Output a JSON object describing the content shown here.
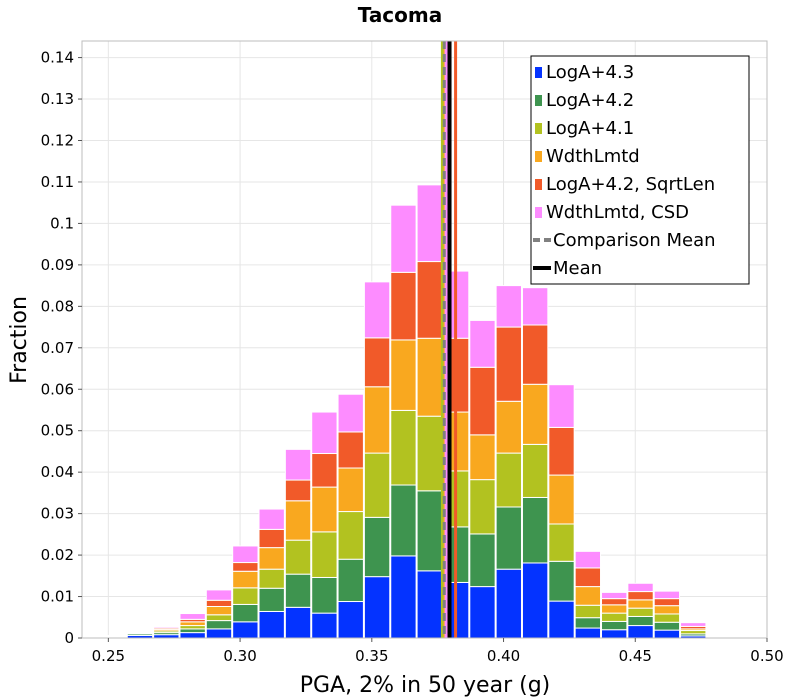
{
  "chart_data": {
    "type": "bar",
    "stacked": true,
    "title": "Tacoma",
    "xlabel": "PGA, 2% in 50 year (g)",
    "ylabel": "Fraction",
    "xlim": [
      0.24,
      0.5
    ],
    "ylim": [
      0,
      0.144
    ],
    "x_ticks": [
      0.25,
      0.3,
      0.35,
      0.4,
      0.45,
      0.5
    ],
    "x_tick_labels": [
      "0.25",
      "0.30",
      "0.35",
      "0.40",
      "0.45",
      "0.50"
    ],
    "y_ticks": [
      0,
      0.01,
      0.02,
      0.03,
      0.04,
      0.05,
      0.06,
      0.07,
      0.08,
      0.09,
      0.1,
      0.11,
      0.12,
      0.13,
      0.14
    ],
    "y_tick_labels": [
      "0",
      "0.01",
      "0.02",
      "0.03",
      "0.04",
      "0.05",
      "0.06",
      "0.07",
      "0.08",
      "0.09",
      "0.1",
      "0.11",
      "0.12",
      "0.13",
      "0.14"
    ],
    "grid": true,
    "bin_width": 0.01,
    "bin_centers": [
      0.252,
      0.262,
      0.272,
      0.282,
      0.292,
      0.302,
      0.312,
      0.322,
      0.332,
      0.342,
      0.352,
      0.362,
      0.372,
      0.382,
      0.392,
      0.402,
      0.412,
      0.422,
      0.432,
      0.442,
      0.452,
      0.462,
      0.472,
      0.482
    ],
    "series": [
      {
        "name": "LogA+4.3",
        "color": "#0433ff",
        "values": [
          0.0001,
          0.0006,
          0.0008,
          0.0013,
          0.0022,
          0.0039,
          0.0064,
          0.0074,
          0.006,
          0.0088,
          0.0148,
          0.0198,
          0.0162,
          0.0134,
          0.0124,
          0.0166,
          0.0181,
          0.0089,
          0.0024,
          0.002,
          0.003,
          0.0019,
          0.0005,
          0.0001
        ]
      },
      {
        "name": "LogA+4.2",
        "color": "#3e944f",
        "values": [
          0.0001,
          0.0004,
          0.0005,
          0.0009,
          0.002,
          0.0042,
          0.0056,
          0.008,
          0.0086,
          0.0102,
          0.0143,
          0.0171,
          0.0193,
          0.0134,
          0.0127,
          0.015,
          0.0158,
          0.0096,
          0.0025,
          0.002,
          0.0022,
          0.0019,
          0.0005,
          0.0001
        ]
      },
      {
        "name": "LogA+4.1",
        "color": "#b2c220",
        "values": [
          0.0001,
          0.0002,
          0.0004,
          0.0008,
          0.0014,
          0.004,
          0.0046,
          0.0082,
          0.011,
          0.0115,
          0.0155,
          0.018,
          0.018,
          0.0135,
          0.0131,
          0.013,
          0.0128,
          0.009,
          0.003,
          0.002,
          0.002,
          0.002,
          0.0008,
          0.0001
        ]
      },
      {
        "name": "WdthLmtd",
        "color": "#f9a81f",
        "values": [
          0.0001,
          0.0002,
          0.0004,
          0.0009,
          0.002,
          0.004,
          0.0052,
          0.0095,
          0.0108,
          0.0105,
          0.016,
          0.017,
          0.0188,
          0.0142,
          0.0108,
          0.0125,
          0.0145,
          0.0118,
          0.0045,
          0.002,
          0.002,
          0.002,
          0.0004,
          0.0001
        ]
      },
      {
        "name": "LogA+4.2, SqrtLen",
        "color": "#f15a29",
        "values": [
          0.0001,
          0.0001,
          0.0003,
          0.0006,
          0.0015,
          0.0021,
          0.0044,
          0.005,
          0.0081,
          0.0087,
          0.0118,
          0.0163,
          0.0185,
          0.0178,
          0.0163,
          0.0179,
          0.0143,
          0.0115,
          0.0045,
          0.0015,
          0.002,
          0.0017,
          0.0006,
          0.0001
        ]
      },
      {
        "name": "WdthLmtd, CSD",
        "color": "#fd8cff",
        "values": [
          0.0001,
          0.0001,
          0.0003,
          0.0014,
          0.0025,
          0.004,
          0.0049,
          0.0074,
          0.01,
          0.0091,
          0.0135,
          0.0162,
          0.0185,
          0.0162,
          0.0113,
          0.01,
          0.009,
          0.0103,
          0.004,
          0.0015,
          0.002,
          0.0018,
          0.0009,
          0.0001
        ]
      }
    ],
    "lines": [
      {
        "name": "LogA+4.3",
        "x": 0.3796,
        "color": "#0433ff",
        "style": "solid"
      },
      {
        "name": "LogA+4.2",
        "x": 0.3792,
        "color": "#3e944f",
        "style": "solid"
      },
      {
        "name": "LogA+4.1",
        "x": 0.3768,
        "color": "#b2c220",
        "style": "solid"
      },
      {
        "name": "WdthLmtd",
        "x": 0.3778,
        "color": "#f9a81f",
        "style": "solid"
      },
      {
        "name": "LogA+4.2, SqrtLen",
        "x": 0.3818,
        "color": "#f15a29",
        "style": "solid"
      },
      {
        "name": "WdthLmtd, CSD",
        "x": 0.3782,
        "color": "#fd8cff",
        "style": "solid"
      },
      {
        "name": "Comparison Mean",
        "x": 0.3775,
        "color": "#808080",
        "style": "dashed"
      },
      {
        "name": "Mean",
        "x": 0.3795,
        "color": "#000000",
        "style": "solid"
      }
    ],
    "legend": {
      "position": "top-right",
      "entries": [
        {
          "label": "LogA+4.3",
          "color": "#0433ff",
          "kind": "box"
        },
        {
          "label": "LogA+4.2",
          "color": "#3e944f",
          "kind": "box"
        },
        {
          "label": "LogA+4.1",
          "color": "#b2c220",
          "kind": "box"
        },
        {
          "label": "WdthLmtd",
          "color": "#f9a81f",
          "kind": "box"
        },
        {
          "label": "LogA+4.2, SqrtLen",
          "color": "#f15a29",
          "kind": "box"
        },
        {
          "label": "WdthLmtd, CSD",
          "color": "#fd8cff",
          "kind": "box"
        },
        {
          "label": "Comparison Mean",
          "color": "#808080",
          "kind": "dashed"
        },
        {
          "label": "Mean",
          "color": "#000000",
          "kind": "line"
        }
      ]
    }
  }
}
